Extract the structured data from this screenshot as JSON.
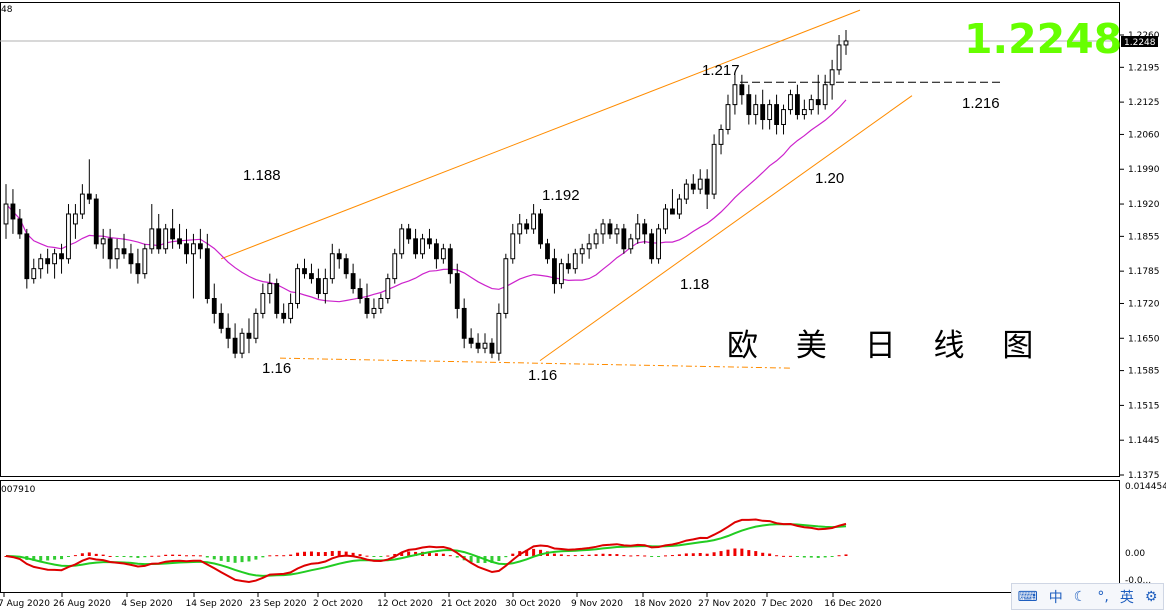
{
  "chart_data": {
    "type": "candlestick",
    "main_title": "欧 美 日 线 图",
    "last_price_label": "1.2248",
    "price_tag": "1.2248",
    "top_left_label": "48",
    "indicator_label": "007910",
    "price_ticks": [
      "1.2260",
      "1.2195",
      "1.2125",
      "1.2060",
      "1.1990",
      "1.1920",
      "1.1855",
      "1.1785",
      "1.1720",
      "1.1650",
      "1.1585",
      "1.1515",
      "1.1445",
      "1.1375"
    ],
    "indicator_ticks": [
      "0.014454",
      "0.00",
      "-0.0..."
    ],
    "date_labels": [
      "7 Aug 2020",
      "26 Aug 2020",
      "4 Sep 2020",
      "14 Sep 2020",
      "23 Sep 2020",
      "2 Oct 2020",
      "12 Oct 2020",
      "21 Oct 2020",
      "30 Oct 2020",
      "9 Nov 2020",
      "18 Nov 2020",
      "27 Nov 2020",
      "7 Dec 2020",
      "16 Dec 2020"
    ],
    "annotations": [
      "1.188",
      "1.16",
      "1.16",
      "1.192",
      "1.18",
      "1.217",
      "1.216",
      "1.20"
    ],
    "ylim": [
      1.1375,
      1.229
    ],
    "colors": {
      "ma": "#cc22cc",
      "channel": "#ff8c00",
      "signal_green": "#22cc22",
      "signal_red": "#dd0000",
      "bar_red": "#ee0000",
      "bar_green": "#33cc33"
    },
    "candles": [
      {
        "o": 1.188,
        "h": 1.196,
        "l": 1.185,
        "c": 1.192
      },
      {
        "o": 1.192,
        "h": 1.195,
        "l": 1.186,
        "c": 1.189
      },
      {
        "o": 1.189,
        "h": 1.191,
        "l": 1.185,
        "c": 1.186
      },
      {
        "o": 1.186,
        "h": 1.187,
        "l": 1.175,
        "c": 1.177
      },
      {
        "o": 1.177,
        "h": 1.181,
        "l": 1.176,
        "c": 1.179
      },
      {
        "o": 1.179,
        "h": 1.182,
        "l": 1.177,
        "c": 1.181
      },
      {
        "o": 1.181,
        "h": 1.183,
        "l": 1.178,
        "c": 1.18
      },
      {
        "o": 1.18,
        "h": 1.183,
        "l": 1.177,
        "c": 1.182
      },
      {
        "o": 1.182,
        "h": 1.184,
        "l": 1.178,
        "c": 1.181
      },
      {
        "o": 1.181,
        "h": 1.192,
        "l": 1.18,
        "c": 1.19
      },
      {
        "o": 1.188,
        "h": 1.192,
        "l": 1.185,
        "c": 1.19
      },
      {
        "o": 1.19,
        "h": 1.196,
        "l": 1.189,
        "c": 1.194
      },
      {
        "o": 1.194,
        "h": 1.201,
        "l": 1.192,
        "c": 1.193
      },
      {
        "o": 1.193,
        "h": 1.194,
        "l": 1.183,
        "c": 1.184
      },
      {
        "o": 1.184,
        "h": 1.187,
        "l": 1.181,
        "c": 1.185
      },
      {
        "o": 1.185,
        "h": 1.187,
        "l": 1.179,
        "c": 1.181
      },
      {
        "o": 1.181,
        "h": 1.185,
        "l": 1.179,
        "c": 1.183
      },
      {
        "o": 1.183,
        "h": 1.186,
        "l": 1.181,
        "c": 1.182
      },
      {
        "o": 1.182,
        "h": 1.184,
        "l": 1.178,
        "c": 1.18
      },
      {
        "o": 1.18,
        "h": 1.183,
        "l": 1.176,
        "c": 1.178
      },
      {
        "o": 1.178,
        "h": 1.184,
        "l": 1.177,
        "c": 1.183
      },
      {
        "o": 1.183,
        "h": 1.192,
        "l": 1.182,
        "c": 1.187
      },
      {
        "o": 1.187,
        "h": 1.19,
        "l": 1.182,
        "c": 1.183
      },
      {
        "o": 1.183,
        "h": 1.188,
        "l": 1.182,
        "c": 1.187
      },
      {
        "o": 1.187,
        "h": 1.191,
        "l": 1.183,
        "c": 1.185
      },
      {
        "o": 1.185,
        "h": 1.188,
        "l": 1.183,
        "c": 1.184
      },
      {
        "o": 1.184,
        "h": 1.187,
        "l": 1.18,
        "c": 1.182
      },
      {
        "o": 1.182,
        "h": 1.186,
        "l": 1.173,
        "c": 1.184
      },
      {
        "o": 1.184,
        "h": 1.187,
        "l": 1.181,
        "c": 1.183
      },
      {
        "o": 1.183,
        "h": 1.186,
        "l": 1.172,
        "c": 1.173
      },
      {
        "o": 1.173,
        "h": 1.176,
        "l": 1.168,
        "c": 1.17
      },
      {
        "o": 1.17,
        "h": 1.172,
        "l": 1.166,
        "c": 1.167
      },
      {
        "o": 1.167,
        "h": 1.17,
        "l": 1.163,
        "c": 1.165
      },
      {
        "o": 1.165,
        "h": 1.168,
        "l": 1.161,
        "c": 1.162
      },
      {
        "o": 1.162,
        "h": 1.167,
        "l": 1.161,
        "c": 1.166
      },
      {
        "o": 1.166,
        "h": 1.169,
        "l": 1.162,
        "c": 1.165
      },
      {
        "o": 1.165,
        "h": 1.171,
        "l": 1.164,
        "c": 1.17
      },
      {
        "o": 1.17,
        "h": 1.176,
        "l": 1.169,
        "c": 1.174
      },
      {
        "o": 1.174,
        "h": 1.178,
        "l": 1.172,
        "c": 1.176
      },
      {
        "o": 1.176,
        "h": 1.177,
        "l": 1.169,
        "c": 1.17
      },
      {
        "o": 1.17,
        "h": 1.172,
        "l": 1.168,
        "c": 1.169
      },
      {
        "o": 1.169,
        "h": 1.174,
        "l": 1.168,
        "c": 1.172
      },
      {
        "o": 1.172,
        "h": 1.18,
        "l": 1.171,
        "c": 1.179
      },
      {
        "o": 1.179,
        "h": 1.181,
        "l": 1.177,
        "c": 1.178
      },
      {
        "o": 1.178,
        "h": 1.18,
        "l": 1.176,
        "c": 1.177
      },
      {
        "o": 1.177,
        "h": 1.179,
        "l": 1.173,
        "c": 1.174
      },
      {
        "o": 1.174,
        "h": 1.179,
        "l": 1.172,
        "c": 1.177
      },
      {
        "o": 1.177,
        "h": 1.184,
        "l": 1.176,
        "c": 1.182
      },
      {
        "o": 1.182,
        "h": 1.183,
        "l": 1.179,
        "c": 1.181
      },
      {
        "o": 1.181,
        "h": 1.182,
        "l": 1.177,
        "c": 1.178
      },
      {
        "o": 1.178,
        "h": 1.18,
        "l": 1.174,
        "c": 1.175
      },
      {
        "o": 1.175,
        "h": 1.177,
        "l": 1.172,
        "c": 1.173
      },
      {
        "o": 1.173,
        "h": 1.176,
        "l": 1.169,
        "c": 1.17
      },
      {
        "o": 1.17,
        "h": 1.173,
        "l": 1.169,
        "c": 1.171
      },
      {
        "o": 1.171,
        "h": 1.174,
        "l": 1.17,
        "c": 1.173
      },
      {
        "o": 1.173,
        "h": 1.178,
        "l": 1.172,
        "c": 1.177
      },
      {
        "o": 1.177,
        "h": 1.183,
        "l": 1.176,
        "c": 1.182
      },
      {
        "o": 1.182,
        "h": 1.188,
        "l": 1.181,
        "c": 1.187
      },
      {
        "o": 1.187,
        "h": 1.188,
        "l": 1.184,
        "c": 1.185
      },
      {
        "o": 1.185,
        "h": 1.187,
        "l": 1.181,
        "c": 1.182
      },
      {
        "o": 1.182,
        "h": 1.186,
        "l": 1.181,
        "c": 1.185
      },
      {
        "o": 1.185,
        "h": 1.187,
        "l": 1.183,
        "c": 1.184
      },
      {
        "o": 1.184,
        "h": 1.185,
        "l": 1.179,
        "c": 1.181
      },
      {
        "o": 1.181,
        "h": 1.184,
        "l": 1.18,
        "c": 1.183
      },
      {
        "o": 1.183,
        "h": 1.184,
        "l": 1.176,
        "c": 1.178
      },
      {
        "o": 1.178,
        "h": 1.18,
        "l": 1.169,
        "c": 1.171
      },
      {
        "o": 1.171,
        "h": 1.173,
        "l": 1.163,
        "c": 1.165
      },
      {
        "o": 1.165,
        "h": 1.167,
        "l": 1.163,
        "c": 1.164
      },
      {
        "o": 1.164,
        "h": 1.166,
        "l": 1.162,
        "c": 1.163
      },
      {
        "o": 1.163,
        "h": 1.166,
        "l": 1.162,
        "c": 1.164
      },
      {
        "o": 1.164,
        "h": 1.165,
        "l": 1.161,
        "c": 1.162
      },
      {
        "o": 1.162,
        "h": 1.172,
        "l": 1.1605,
        "c": 1.17
      },
      {
        "o": 1.17,
        "h": 1.182,
        "l": 1.169,
        "c": 1.181
      },
      {
        "o": 1.181,
        "h": 1.188,
        "l": 1.18,
        "c": 1.186
      },
      {
        "o": 1.186,
        "h": 1.19,
        "l": 1.184,
        "c": 1.188
      },
      {
        "o": 1.188,
        "h": 1.189,
        "l": 1.186,
        "c": 1.187
      },
      {
        "o": 1.187,
        "h": 1.192,
        "l": 1.186,
        "c": 1.19
      },
      {
        "o": 1.19,
        "h": 1.191,
        "l": 1.183,
        "c": 1.184
      },
      {
        "o": 1.184,
        "h": 1.185,
        "l": 1.18,
        "c": 1.181
      },
      {
        "o": 1.181,
        "h": 1.183,
        "l": 1.174,
        "c": 1.176
      },
      {
        "o": 1.176,
        "h": 1.181,
        "l": 1.175,
        "c": 1.18
      },
      {
        "o": 1.18,
        "h": 1.182,
        "l": 1.178,
        "c": 1.179
      },
      {
        "o": 1.179,
        "h": 1.183,
        "l": 1.178,
        "c": 1.182
      },
      {
        "o": 1.182,
        "h": 1.184,
        "l": 1.18,
        "c": 1.183
      },
      {
        "o": 1.183,
        "h": 1.186,
        "l": 1.181,
        "c": 1.184
      },
      {
        "o": 1.184,
        "h": 1.187,
        "l": 1.183,
        "c": 1.186
      },
      {
        "o": 1.186,
        "h": 1.189,
        "l": 1.184,
        "c": 1.188
      },
      {
        "o": 1.188,
        "h": 1.189,
        "l": 1.185,
        "c": 1.186
      },
      {
        "o": 1.186,
        "h": 1.188,
        "l": 1.184,
        "c": 1.187
      },
      {
        "o": 1.187,
        "h": 1.188,
        "l": 1.182,
        "c": 1.183
      },
      {
        "o": 1.183,
        "h": 1.186,
        "l": 1.182,
        "c": 1.185
      },
      {
        "o": 1.185,
        "h": 1.19,
        "l": 1.184,
        "c": 1.188
      },
      {
        "o": 1.188,
        "h": 1.189,
        "l": 1.184,
        "c": 1.186
      },
      {
        "o": 1.186,
        "h": 1.187,
        "l": 1.18,
        "c": 1.181
      },
      {
        "o": 1.181,
        "h": 1.188,
        "l": 1.18,
        "c": 1.187
      },
      {
        "o": 1.187,
        "h": 1.192,
        "l": 1.186,
        "c": 1.191
      },
      {
        "o": 1.191,
        "h": 1.195,
        "l": 1.19,
        "c": 1.19
      },
      {
        "o": 1.19,
        "h": 1.194,
        "l": 1.189,
        "c": 1.193
      },
      {
        "o": 1.193,
        "h": 1.197,
        "l": 1.192,
        "c": 1.196
      },
      {
        "o": 1.196,
        "h": 1.198,
        "l": 1.194,
        "c": 1.195
      },
      {
        "o": 1.195,
        "h": 1.199,
        "l": 1.194,
        "c": 1.197
      },
      {
        "o": 1.197,
        "h": 1.199,
        "l": 1.191,
        "c": 1.194
      },
      {
        "o": 1.194,
        "h": 1.206,
        "l": 1.193,
        "c": 1.204
      },
      {
        "o": 1.204,
        "h": 1.208,
        "l": 1.202,
        "c": 1.207
      },
      {
        "o": 1.207,
        "h": 1.214,
        "l": 1.206,
        "c": 1.212
      },
      {
        "o": 1.212,
        "h": 1.218,
        "l": 1.21,
        "c": 1.216
      },
      {
        "o": 1.216,
        "h": 1.218,
        "l": 1.212,
        "c": 1.214
      },
      {
        "o": 1.214,
        "h": 1.216,
        "l": 1.208,
        "c": 1.21
      },
      {
        "o": 1.21,
        "h": 1.214,
        "l": 1.208,
        "c": 1.212
      },
      {
        "o": 1.212,
        "h": 1.215,
        "l": 1.207,
        "c": 1.209
      },
      {
        "o": 1.209,
        "h": 1.213,
        "l": 1.207,
        "c": 1.212
      },
      {
        "o": 1.212,
        "h": 1.214,
        "l": 1.206,
        "c": 1.208
      },
      {
        "o": 1.208,
        "h": 1.212,
        "l": 1.206,
        "c": 1.211
      },
      {
        "o": 1.211,
        "h": 1.215,
        "l": 1.21,
        "c": 1.214
      },
      {
        "o": 1.214,
        "h": 1.216,
        "l": 1.209,
        "c": 1.21
      },
      {
        "o": 1.21,
        "h": 1.213,
        "l": 1.209,
        "c": 1.211
      },
      {
        "o": 1.211,
        "h": 1.214,
        "l": 1.21,
        "c": 1.213
      },
      {
        "o": 1.213,
        "h": 1.218,
        "l": 1.21,
        "c": 1.212
      },
      {
        "o": 1.212,
        "h": 1.218,
        "l": 1.211,
        "c": 1.216
      },
      {
        "o": 1.216,
        "h": 1.221,
        "l": 1.213,
        "c": 1.219
      },
      {
        "o": 1.219,
        "h": 1.226,
        "l": 1.218,
        "c": 1.224
      },
      {
        "o": 1.224,
        "h": 1.227,
        "l": 1.222,
        "c": 1.2248
      }
    ]
  },
  "ime_bar": {
    "label_cn": "中",
    "label_en": "英"
  }
}
